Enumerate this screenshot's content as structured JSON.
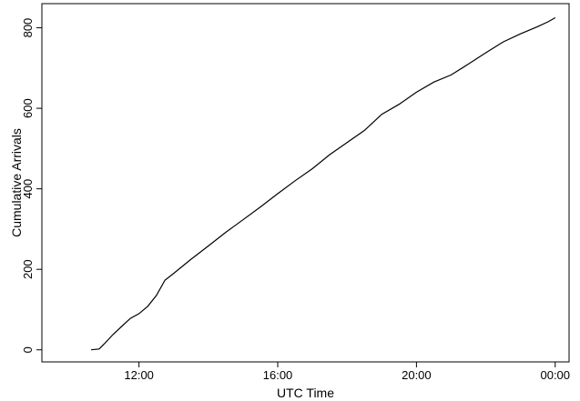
{
  "chart_data": {
    "type": "line",
    "xlabel": "UTC Time",
    "ylabel": "Cumulative Arrivals",
    "x_axis": {
      "unit": "hours since 00:00 on the day shown",
      "ticks": [
        {
          "value": 12,
          "label": "12:00"
        },
        {
          "value": 16,
          "label": "16:00"
        },
        {
          "value": 20,
          "label": "20:00"
        },
        {
          "value": 24,
          "label": "00:00"
        }
      ],
      "range": [
        9.2,
        24.4
      ]
    },
    "y_axis": {
      "ticks": [
        {
          "value": 0,
          "label": "0"
        },
        {
          "value": 200,
          "label": "200"
        },
        {
          "value": 400,
          "label": "400"
        },
        {
          "value": 600,
          "label": "600"
        },
        {
          "value": 800,
          "label": "800"
        }
      ],
      "range": [
        -30,
        860
      ]
    },
    "grid": false,
    "legend": "none",
    "series": [
      {
        "values": [
          {
            "x": 10.62,
            "y": 0
          },
          {
            "x": 10.85,
            "y": 2
          },
          {
            "x": 11.0,
            "y": 15
          },
          {
            "x": 11.25,
            "y": 38
          },
          {
            "x": 11.5,
            "y": 58
          },
          {
            "x": 11.75,
            "y": 78
          },
          {
            "x": 12.0,
            "y": 90
          },
          {
            "x": 12.25,
            "y": 108
          },
          {
            "x": 12.5,
            "y": 135
          },
          {
            "x": 12.75,
            "y": 173
          },
          {
            "x": 13.0,
            "y": 190
          },
          {
            "x": 13.5,
            "y": 225
          },
          {
            "x": 14.0,
            "y": 258
          },
          {
            "x": 14.5,
            "y": 292
          },
          {
            "x": 15.0,
            "y": 323
          },
          {
            "x": 15.5,
            "y": 355
          },
          {
            "x": 16.0,
            "y": 388
          },
          {
            "x": 16.5,
            "y": 420
          },
          {
            "x": 17.0,
            "y": 450
          },
          {
            "x": 17.5,
            "y": 485
          },
          {
            "x": 18.0,
            "y": 515
          },
          {
            "x": 18.5,
            "y": 545
          },
          {
            "x": 19.0,
            "y": 585
          },
          {
            "x": 19.5,
            "y": 610
          },
          {
            "x": 20.0,
            "y": 640
          },
          {
            "x": 20.5,
            "y": 665
          },
          {
            "x": 21.0,
            "y": 683
          },
          {
            "x": 21.5,
            "y": 710
          },
          {
            "x": 22.0,
            "y": 738
          },
          {
            "x": 22.5,
            "y": 765
          },
          {
            "x": 23.0,
            "y": 785
          },
          {
            "x": 23.5,
            "y": 803
          },
          {
            "x": 23.8,
            "y": 815
          },
          {
            "x": 24.0,
            "y": 825
          }
        ]
      }
    ]
  }
}
